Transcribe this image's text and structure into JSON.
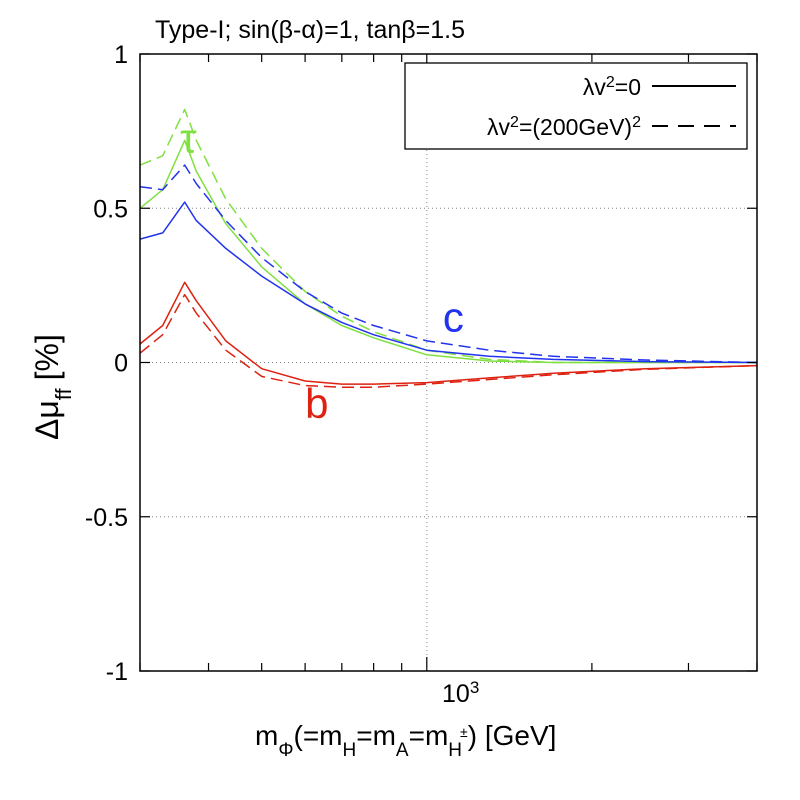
{
  "chart_data": {
    "type": "line",
    "title": "Type-I; sin(β-α)=1, tanβ=1.5",
    "xlabel": "mΦ(=mH=mA=mH±) [GeV]",
    "xlabel_parts": {
      "m": "m",
      "phi_sub": "Φ",
      "eq": "(=m",
      "H_sub": "H",
      "eq2": "=m",
      "A_sub": "A",
      "eq3": "=m",
      "Hpm_sub": "H",
      "pm_sup": "±",
      "tail": ") [GeV]"
    },
    "ylabel": "Δμff [%]",
    "ylabel_parts": {
      "delta_mu": "Δμ",
      "ff_sub": "ff",
      "unit": "[%]"
    },
    "xscale": "log",
    "xlim": [
      300,
      4000
    ],
    "ylim": [
      -1,
      1
    ],
    "yticks": [
      -1,
      -0.5,
      0,
      0.5,
      1
    ],
    "ytick_labels": [
      "-1",
      "-0.5",
      "0",
      "0.5",
      "1"
    ],
    "xtick_major": {
      "value": 1000,
      "base": "10",
      "exp": "3"
    },
    "grid": true,
    "legend": {
      "position": "top-right",
      "entries": [
        {
          "label_main": "λv",
          "label_sup": "2",
          "label_tail": "=0",
          "style": "solid"
        },
        {
          "label_main": "λv",
          "label_sup": "2",
          "label_tail": "=(200GeV)",
          "label_sup2": "2",
          "style": "dashed"
        }
      ]
    },
    "annotations": [
      {
        "text": "τ",
        "color": "#80e040",
        "x": 355,
        "y": 0.68
      },
      {
        "text": "c",
        "color": "#2233ee",
        "x": 1070,
        "y": 0.1
      },
      {
        "text": "b",
        "color": "#dd2211",
        "x": 600,
        "y": -0.18
      }
    ],
    "series": [
      {
        "name": "τ λv²=0",
        "color": "#80e040",
        "dash": false,
        "x": [
          300,
          330,
          362,
          380,
          430,
          500,
          600,
          700,
          800,
          1000,
          1300,
          1700,
          2500,
          4000
        ],
        "y": [
          0.5,
          0.56,
          0.72,
          0.62,
          0.45,
          0.31,
          0.19,
          0.12,
          0.08,
          0.025,
          0.005,
          0.0,
          0.0,
          0.0
        ]
      },
      {
        "name": "τ λv²=(200GeV)²",
        "color": "#80e040",
        "dash": true,
        "x": [
          300,
          330,
          362,
          380,
          430,
          500,
          600,
          700,
          800,
          1000,
          1300,
          1700,
          2500,
          4000
        ],
        "y": [
          0.64,
          0.67,
          0.82,
          0.72,
          0.53,
          0.37,
          0.23,
          0.15,
          0.1,
          0.04,
          0.01,
          0.0,
          0.0,
          0.0
        ]
      },
      {
        "name": "c λv²=0",
        "color": "#2233ee",
        "dash": false,
        "x": [
          300,
          330,
          362,
          380,
          430,
          500,
          600,
          700,
          800,
          1000,
          1300,
          1700,
          2500,
          4000
        ],
        "y": [
          0.4,
          0.42,
          0.52,
          0.46,
          0.37,
          0.28,
          0.19,
          0.13,
          0.09,
          0.04,
          0.02,
          0.01,
          0.003,
          0.0
        ]
      },
      {
        "name": "c λv²=(200GeV)²",
        "color": "#2233ee",
        "dash": true,
        "x": [
          300,
          330,
          362,
          380,
          430,
          500,
          600,
          700,
          800,
          1000,
          1300,
          1700,
          2500,
          4000
        ],
        "y": [
          0.57,
          0.56,
          0.64,
          0.58,
          0.46,
          0.34,
          0.23,
          0.16,
          0.12,
          0.07,
          0.04,
          0.02,
          0.008,
          0.0
        ]
      },
      {
        "name": "b λv²=0",
        "color": "#dd2211",
        "dash": false,
        "x": [
          300,
          330,
          362,
          380,
          430,
          500,
          600,
          700,
          800,
          1000,
          1300,
          1700,
          2500,
          4000
        ],
        "y": [
          0.06,
          0.12,
          0.26,
          0.2,
          0.07,
          -0.02,
          -0.06,
          -0.07,
          -0.07,
          -0.065,
          -0.05,
          -0.035,
          -0.02,
          -0.01
        ]
      },
      {
        "name": "b λv²=(200GeV)²",
        "color": "#dd2211",
        "dash": true,
        "x": [
          300,
          330,
          362,
          380,
          430,
          500,
          600,
          700,
          800,
          1000,
          1300,
          1700,
          2500,
          4000
        ],
        "y": [
          0.03,
          0.09,
          0.22,
          0.16,
          0.04,
          -0.045,
          -0.075,
          -0.08,
          -0.08,
          -0.07,
          -0.055,
          -0.04,
          -0.022,
          -0.01
        ]
      }
    ]
  }
}
